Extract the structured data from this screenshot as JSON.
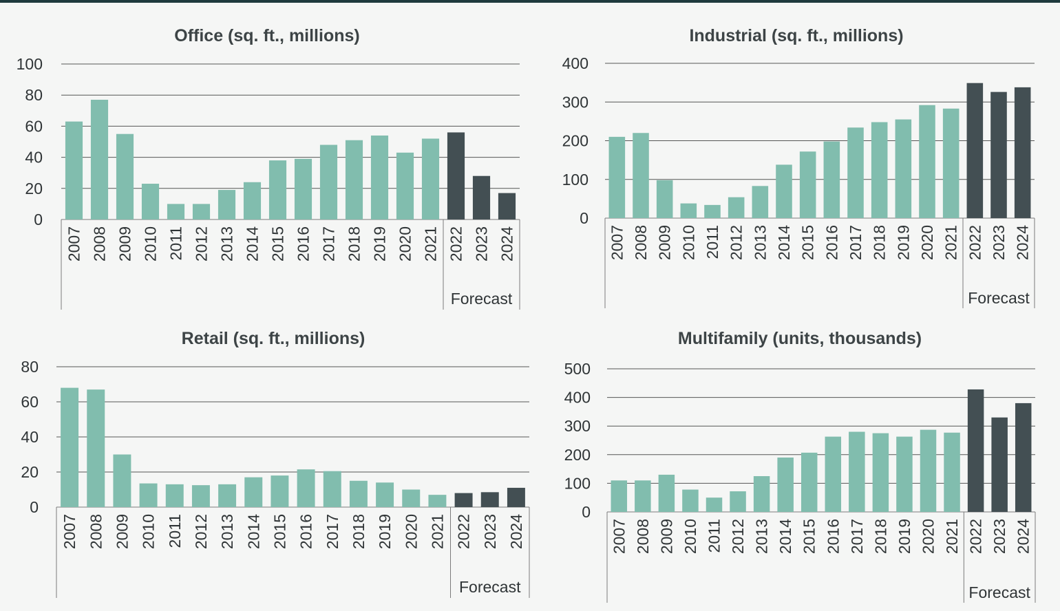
{
  "colors": {
    "historical": "#81bdae",
    "forecast": "#434f53",
    "grid": "#555555",
    "text": "#2f3436"
  },
  "forecast_label": "Forecast",
  "chart_data": [
    {
      "id": "office",
      "type": "bar",
      "title": "Office (sq. ft., millions)",
      "categories": [
        "2007",
        "2008",
        "2009",
        "2010",
        "2011",
        "2012",
        "2013",
        "2014",
        "2015",
        "2016",
        "2017",
        "2018",
        "2019",
        "2020",
        "2021",
        "2022",
        "2023",
        "2024"
      ],
      "values": [
        63,
        77,
        55,
        23,
        10,
        10,
        19,
        24,
        38,
        39,
        48,
        51,
        54,
        43,
        52,
        56,
        28,
        17
      ],
      "forecast_from": "2022",
      "ylim": [
        0,
        100
      ],
      "yticks": [
        0,
        20,
        40,
        60,
        80,
        100
      ],
      "grid": true
    },
    {
      "id": "industrial",
      "type": "bar",
      "title": "Industrial (sq. ft., millions)",
      "categories": [
        "2007",
        "2008",
        "2009",
        "2010",
        "2011",
        "2012",
        "2013",
        "2014",
        "2015",
        "2016",
        "2017",
        "2018",
        "2019",
        "2020",
        "2021",
        "2022",
        "2023",
        "2024"
      ],
      "values": [
        210,
        220,
        98,
        38,
        34,
        54,
        83,
        138,
        172,
        198,
        234,
        248,
        255,
        292,
        283,
        349,
        326,
        338
      ],
      "forecast_from": "2022",
      "ylim": [
        0,
        400
      ],
      "yticks": [
        0,
        100,
        200,
        300,
        400
      ],
      "grid": true
    },
    {
      "id": "retail",
      "type": "bar",
      "title": "Retail (sq. ft., millions)",
      "categories": [
        "2007",
        "2008",
        "2009",
        "2010",
        "2011",
        "2012",
        "2013",
        "2014",
        "2015",
        "2016",
        "2017",
        "2018",
        "2019",
        "2020",
        "2021",
        "2022",
        "2023",
        "2024"
      ],
      "values": [
        68,
        67,
        30,
        13.5,
        13,
        12.5,
        13,
        17,
        18,
        21.5,
        20.5,
        15,
        14,
        10,
        7,
        8,
        8.5,
        11
      ],
      "forecast_from": "2022",
      "ylim": [
        0,
        80
      ],
      "yticks": [
        0,
        20,
        40,
        60,
        80
      ],
      "grid": true
    },
    {
      "id": "multifamily",
      "type": "bar",
      "title": "Multifamily (units, thousands)",
      "categories": [
        "2007",
        "2008",
        "2009",
        "2010",
        "2011",
        "2012",
        "2013",
        "2014",
        "2015",
        "2016",
        "2017",
        "2018",
        "2019",
        "2020",
        "2021",
        "2022",
        "2023",
        "2024"
      ],
      "values": [
        110,
        110,
        130,
        78,
        50,
        72,
        125,
        190,
        207,
        263,
        280,
        275,
        263,
        287,
        277,
        428,
        330,
        380
      ],
      "forecast_from": "2022",
      "ylim": [
        0,
        500
      ],
      "yticks": [
        0,
        100,
        200,
        300,
        400,
        500
      ],
      "grid": true
    }
  ]
}
